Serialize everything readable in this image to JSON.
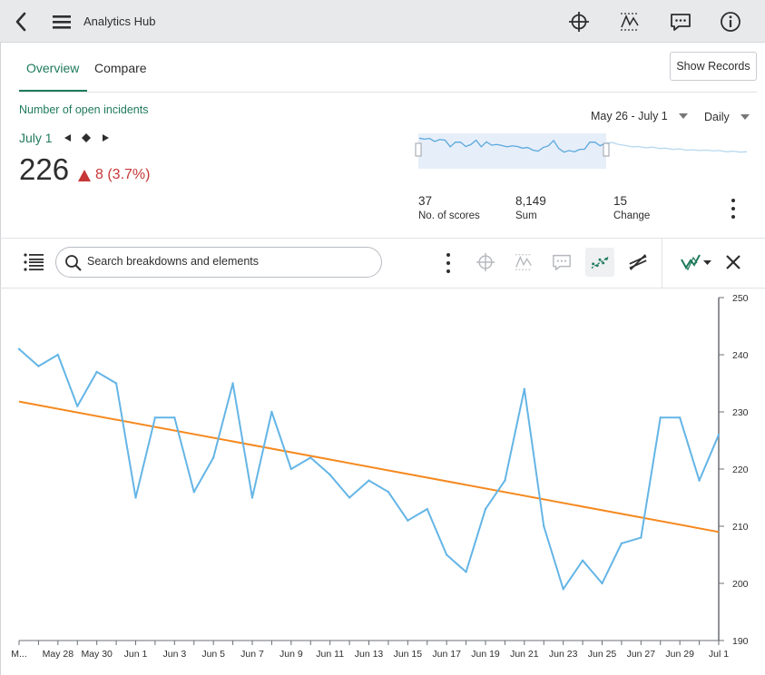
{
  "app": {
    "title": "Analytics Hub"
  },
  "topbar": {
    "icons": [
      "back-icon",
      "menu-icon",
      "target-icon",
      "trend-icon",
      "comment-icon",
      "info-icon"
    ]
  },
  "tabs": [
    {
      "label": "Overview",
      "active": true
    },
    {
      "label": "Compare",
      "active": false
    }
  ],
  "show_records_label": "Show Records",
  "metric": {
    "title": "Number of open incidents",
    "date": "July 1",
    "value": "226",
    "change": "8 (3.7%)",
    "change_direction": "up",
    "change_color": "#c83737"
  },
  "date_range": {
    "label": "May 26 - July 1"
  },
  "frequency": {
    "label": "Daily"
  },
  "stats": [
    {
      "value": "37",
      "label": "No. of scores"
    },
    {
      "value": "8,149",
      "label": "Sum"
    },
    {
      "value": "15",
      "label": "Change"
    }
  ],
  "search": {
    "placeholder": "Search breakdowns and elements"
  },
  "colors": {
    "accent": "#1f7a5c",
    "series": "#64b5e6",
    "trend": "#f5891f"
  },
  "chart_data": {
    "type": "line",
    "x": [
      "May 26",
      "May 27",
      "May 28",
      "May 29",
      "May 30",
      "May 31",
      "Jun 1",
      "Jun 2",
      "Jun 3",
      "Jun 4",
      "Jun 5",
      "Jun 6",
      "Jun 7",
      "Jun 8",
      "Jun 9",
      "Jun 10",
      "Jun 11",
      "Jun 12",
      "Jun 13",
      "Jun 14",
      "Jun 15",
      "Jun 16",
      "Jun 17",
      "Jun 18",
      "Jun 19",
      "Jun 20",
      "Jun 21",
      "Jun 22",
      "Jun 23",
      "Jun 24",
      "Jun 25",
      "Jun 26",
      "Jun 27",
      "Jun 28",
      "Jun 29",
      "Jun 30",
      "Jul 1"
    ],
    "series": [
      {
        "values": [
          241,
          238,
          240,
          231,
          237,
          235,
          215,
          229,
          229,
          216,
          222,
          235,
          215,
          230,
          220,
          222,
          219,
          215,
          218,
          216,
          211,
          213,
          205,
          202,
          213,
          218,
          234,
          210,
          199,
          204,
          200,
          207,
          208,
          229,
          229,
          218,
          226
        ]
      }
    ],
    "trend": {
      "start": 231.8,
      "end": 209.0
    },
    "x_tick_labels": [
      "M...",
      "May 28",
      "May 30",
      "Jun 1",
      "Jun 3",
      "Jun 5",
      "Jun 7",
      "Jun 9",
      "Jun 11",
      "Jun 13",
      "Jun 15",
      "Jun 17",
      "Jun 19",
      "Jun 21",
      "Jun 23",
      "Jun 25",
      "Jun 27",
      "Jun 29",
      "Jul 1"
    ],
    "y_ticks": [
      190,
      200,
      210,
      220,
      230,
      240,
      250
    ],
    "ylim": [
      190,
      250
    ],
    "y_axis_side": "right",
    "grid": false
  }
}
